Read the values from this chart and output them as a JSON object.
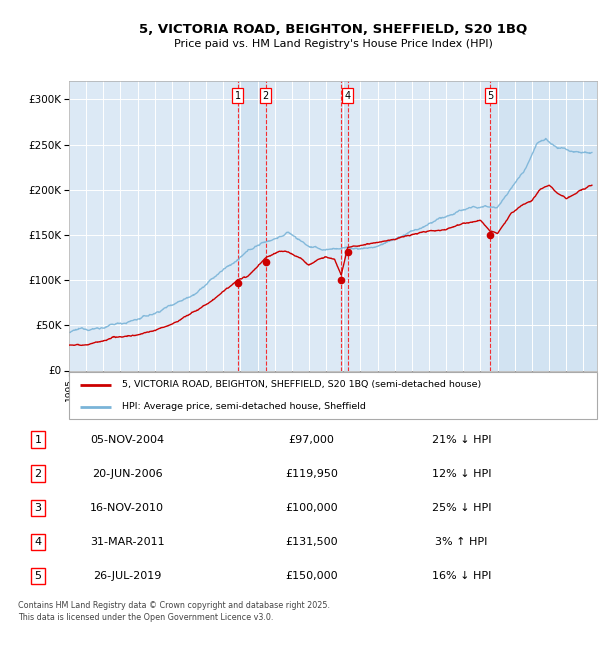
{
  "title_line1": "5, VICTORIA ROAD, BEIGHTON, SHEFFIELD, S20 1BQ",
  "title_line2": "Price paid vs. HM Land Registry's House Price Index (HPI)",
  "background_color": "#dce9f5",
  "hpi_color": "#7ab4d8",
  "price_color": "#cc0000",
  "grid_color": "#ffffff",
  "transactions": [
    {
      "num": 1,
      "date": "05-NOV-2004",
      "year": 2004.85,
      "price": 97000,
      "hpi_label": "21% ↓ HPI",
      "show_top": true
    },
    {
      "num": 2,
      "date": "20-JUN-2006",
      "year": 2006.47,
      "price": 119950,
      "hpi_label": "12% ↓ HPI",
      "show_top": true
    },
    {
      "num": 3,
      "date": "16-NOV-2010",
      "year": 2010.88,
      "price": 100000,
      "hpi_label": "25% ↓ HPI",
      "show_top": false
    },
    {
      "num": 4,
      "date": "31-MAR-2011",
      "year": 2011.25,
      "price": 131500,
      "hpi_label": "3% ↑ HPI",
      "show_top": true
    },
    {
      "num": 5,
      "date": "26-JUL-2019",
      "year": 2019.57,
      "price": 150000,
      "hpi_label": "16% ↓ HPI",
      "show_top": true
    }
  ],
  "ylim": [
    0,
    320000
  ],
  "xlim_start": 1995.0,
  "xlim_end": 2025.8,
  "yticks": [
    0,
    50000,
    100000,
    150000,
    200000,
    250000,
    300000
  ],
  "ytick_labels": [
    "£0",
    "£50K",
    "£100K",
    "£150K",
    "£200K",
    "£250K",
    "£300K"
  ],
  "legend_label_red": "5, VICTORIA ROAD, BEIGHTON, SHEFFIELD, S20 1BQ (semi-detached house)",
  "legend_label_blue": "HPI: Average price, semi-detached house, Sheffield",
  "footer": "Contains HM Land Registry data © Crown copyright and database right 2025.\nThis data is licensed under the Open Government Licence v3.0."
}
